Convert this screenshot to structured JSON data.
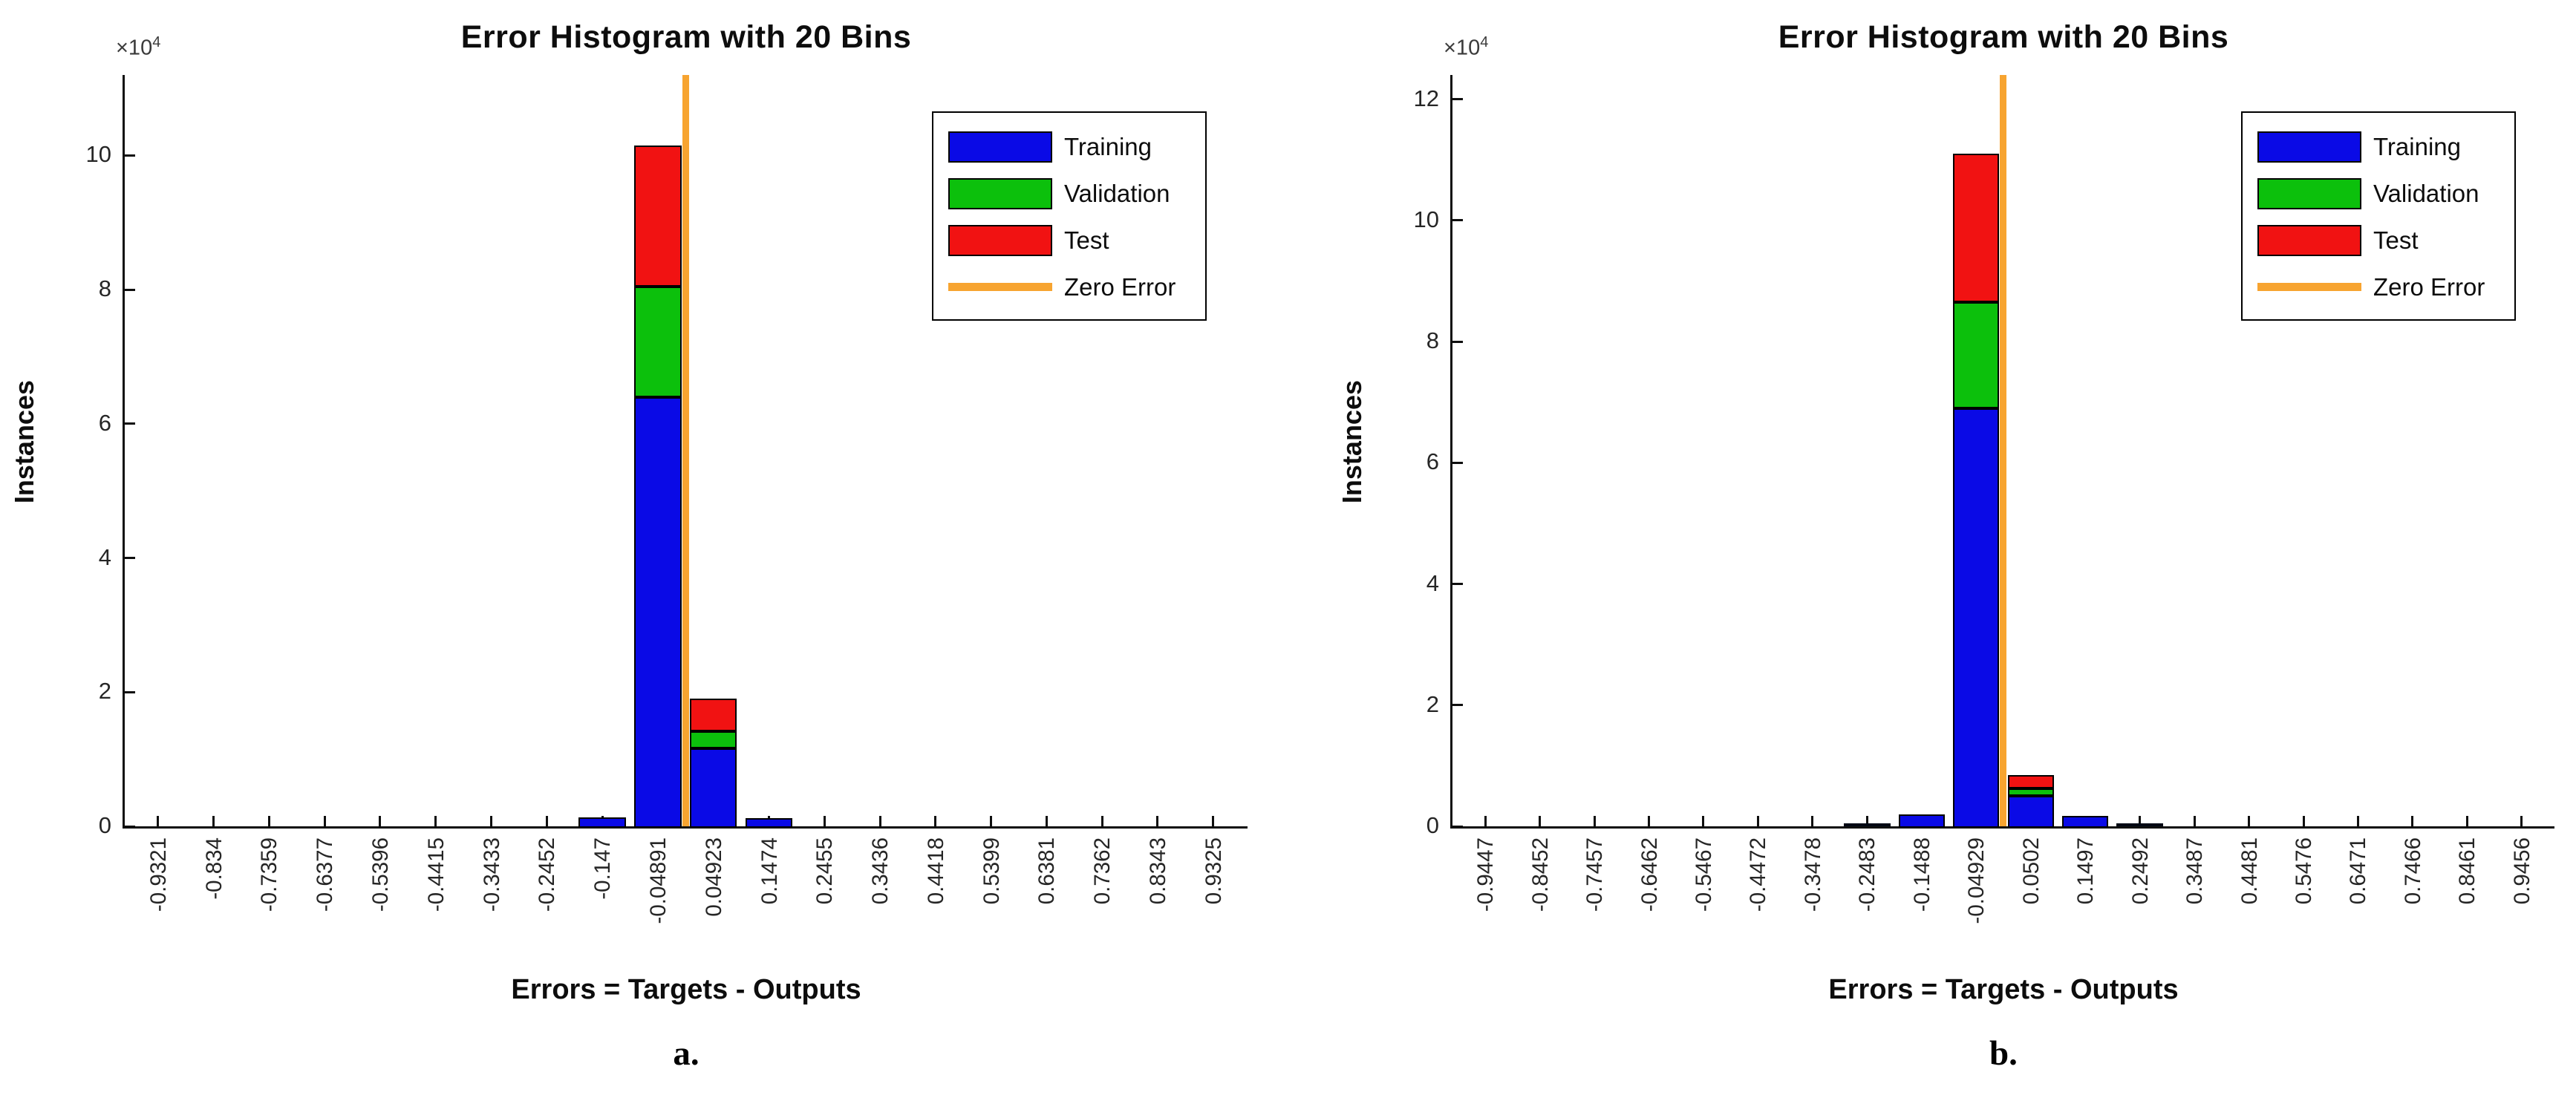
{
  "chart_data": [
    {
      "type": "bar",
      "stacked": true,
      "title": "Error Histogram with 20 Bins",
      "xlabel": "Errors = Targets - Outputs",
      "ylabel": "Instances",
      "caption": "a.",
      "y_exponent": {
        "base": "×10",
        "power": "4"
      },
      "grid": false,
      "legend_position": "top-right",
      "ylim": [
        0,
        112000
      ],
      "xlim": [
        -0.991,
        0.9931
      ],
      "yticks": [
        {
          "v": 0,
          "label": "0"
        },
        {
          "v": 20000,
          "label": "2"
        },
        {
          "v": 40000,
          "label": "4"
        },
        {
          "v": 60000,
          "label": "6"
        },
        {
          "v": 80000,
          "label": "8"
        },
        {
          "v": 100000,
          "label": "10"
        }
      ],
      "categories": [
        "-0.9321",
        "-0.834",
        "-0.7359",
        "-0.6377",
        "-0.5396",
        "-0.4415",
        "-0.3433",
        "-0.2452",
        "-0.147",
        "-0.04891",
        "0.04923",
        "0.1474",
        "0.2455",
        "0.3436",
        "0.4418",
        "0.5399",
        "0.6381",
        "0.7362",
        "0.8343",
        "0.9325"
      ],
      "series": [
        {
          "name": "Training",
          "color": "#0a0ae6",
          "values": [
            0,
            0,
            0,
            0,
            0,
            0,
            0,
            0,
            1300,
            64000,
            11600,
            1200,
            0,
            0,
            0,
            0,
            0,
            0,
            0,
            0
          ]
        },
        {
          "name": "Validation",
          "color": "#0cc00c",
          "values": [
            0,
            0,
            0,
            0,
            0,
            0,
            0,
            0,
            0,
            16500,
            2600,
            0,
            0,
            0,
            0,
            0,
            0,
            0,
            0,
            0
          ]
        },
        {
          "name": "Test",
          "color": "#f11212",
          "values": [
            0,
            0,
            0,
            0,
            0,
            0,
            0,
            0,
            0,
            21000,
            4800,
            0,
            0,
            0,
            0,
            0,
            0,
            0,
            0,
            0
          ]
        }
      ],
      "zero_error_line": {
        "label": "Zero Error",
        "color": "#f7a430",
        "x": 0
      }
    },
    {
      "type": "bar",
      "stacked": true,
      "title": "Error Histogram with 20 Bins",
      "xlabel": "Errors = Targets - Outputs",
      "ylabel": "Instances",
      "caption": "b.",
      "y_exponent": {
        "base": "×10",
        "power": "4"
      },
      "grid": false,
      "legend_position": "top-right",
      "ylim": [
        0,
        124000
      ],
      "xlim": [
        -1.0044,
        1.0053
      ],
      "yticks": [
        {
          "v": 0,
          "label": "0"
        },
        {
          "v": 20000,
          "label": "2"
        },
        {
          "v": 40000,
          "label": "4"
        },
        {
          "v": 60000,
          "label": "6"
        },
        {
          "v": 80000,
          "label": "8"
        },
        {
          "v": 100000,
          "label": "10"
        },
        {
          "v": 120000,
          "label": "12"
        }
      ],
      "categories": [
        "-0.9447",
        "-0.8452",
        "-0.7457",
        "-0.6462",
        "-0.5467",
        "-0.4472",
        "-0.3478",
        "-0.2483",
        "-0.1488",
        "-0.04929",
        "0.0502",
        "0.1497",
        "0.2492",
        "0.3487",
        "0.4481",
        "0.5476",
        "0.6471",
        "0.7466",
        "0.8461",
        "0.9456"
      ],
      "series": [
        {
          "name": "Training",
          "color": "#0a0ae6",
          "values": [
            0,
            0,
            0,
            0,
            0,
            0,
            0,
            350,
            2000,
            69000,
            5000,
            1700,
            450,
            0,
            0,
            0,
            0,
            0,
            0,
            0
          ]
        },
        {
          "name": "Validation",
          "color": "#0cc00c",
          "values": [
            0,
            0,
            0,
            0,
            0,
            0,
            0,
            0,
            0,
            17500,
            1200,
            0,
            0,
            0,
            0,
            0,
            0,
            0,
            0,
            0
          ]
        },
        {
          "name": "Test",
          "color": "#f11212",
          "values": [
            0,
            0,
            0,
            0,
            0,
            0,
            0,
            0,
            0,
            24500,
            2300,
            0,
            0,
            0,
            0,
            0,
            0,
            0,
            0,
            0
          ]
        }
      ],
      "zero_error_line": {
        "label": "Zero Error",
        "color": "#f7a430",
        "x": 0
      }
    }
  ]
}
